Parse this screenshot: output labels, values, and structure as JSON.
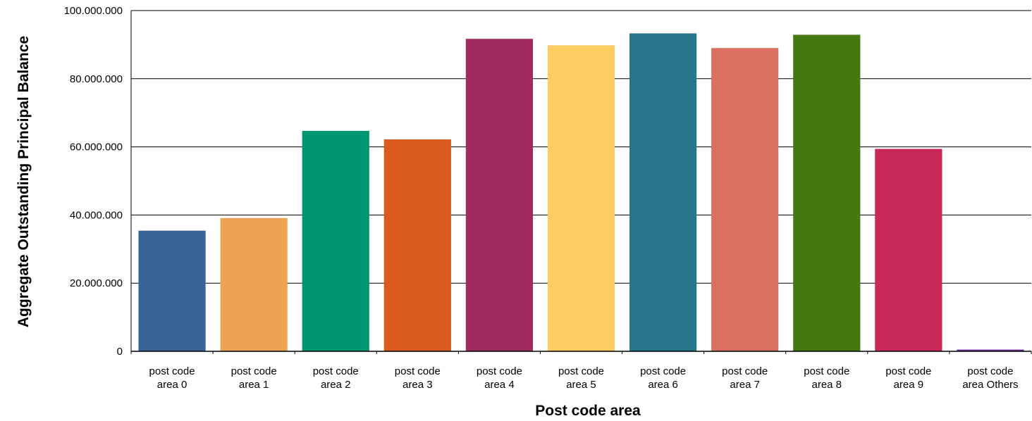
{
  "chart_data": {
    "type": "bar",
    "xlabel": "Post code area",
    "ylabel": "Aggregate Outstanding Principal Balance",
    "ylim": [
      0,
      100000000
    ],
    "yticks": [
      0,
      20000000,
      40000000,
      60000000,
      80000000,
      100000000
    ],
    "ytick_labels": [
      "0",
      "20.000.000",
      "40.000.000",
      "60.000.000",
      "80.000.000",
      "100.000.000"
    ],
    "grid": true,
    "legend": "none",
    "categories": [
      [
        "post code",
        "area 0"
      ],
      [
        "post code",
        "area 1"
      ],
      [
        "post code",
        "area 2"
      ],
      [
        "post code",
        "area 3"
      ],
      [
        "post code",
        "area 4"
      ],
      [
        "post code",
        "area 5"
      ],
      [
        "post code",
        "area 6"
      ],
      [
        "post code",
        "area 7"
      ],
      [
        "post code",
        "area 8"
      ],
      [
        "post code",
        "area 9"
      ],
      [
        "post code",
        "area Others"
      ]
    ],
    "values": [
      35400000,
      39100000,
      64700000,
      62200000,
      91700000,
      89800000,
      93300000,
      89000000,
      92900000,
      59400000,
      500000
    ],
    "colors": [
      "#3b6496",
      "#eda452",
      "#009670",
      "#db5a20",
      "#a02b60",
      "#fdcd63",
      "#277689",
      "#db7062",
      "#457713",
      "#c92958",
      "#6a2c99"
    ]
  }
}
